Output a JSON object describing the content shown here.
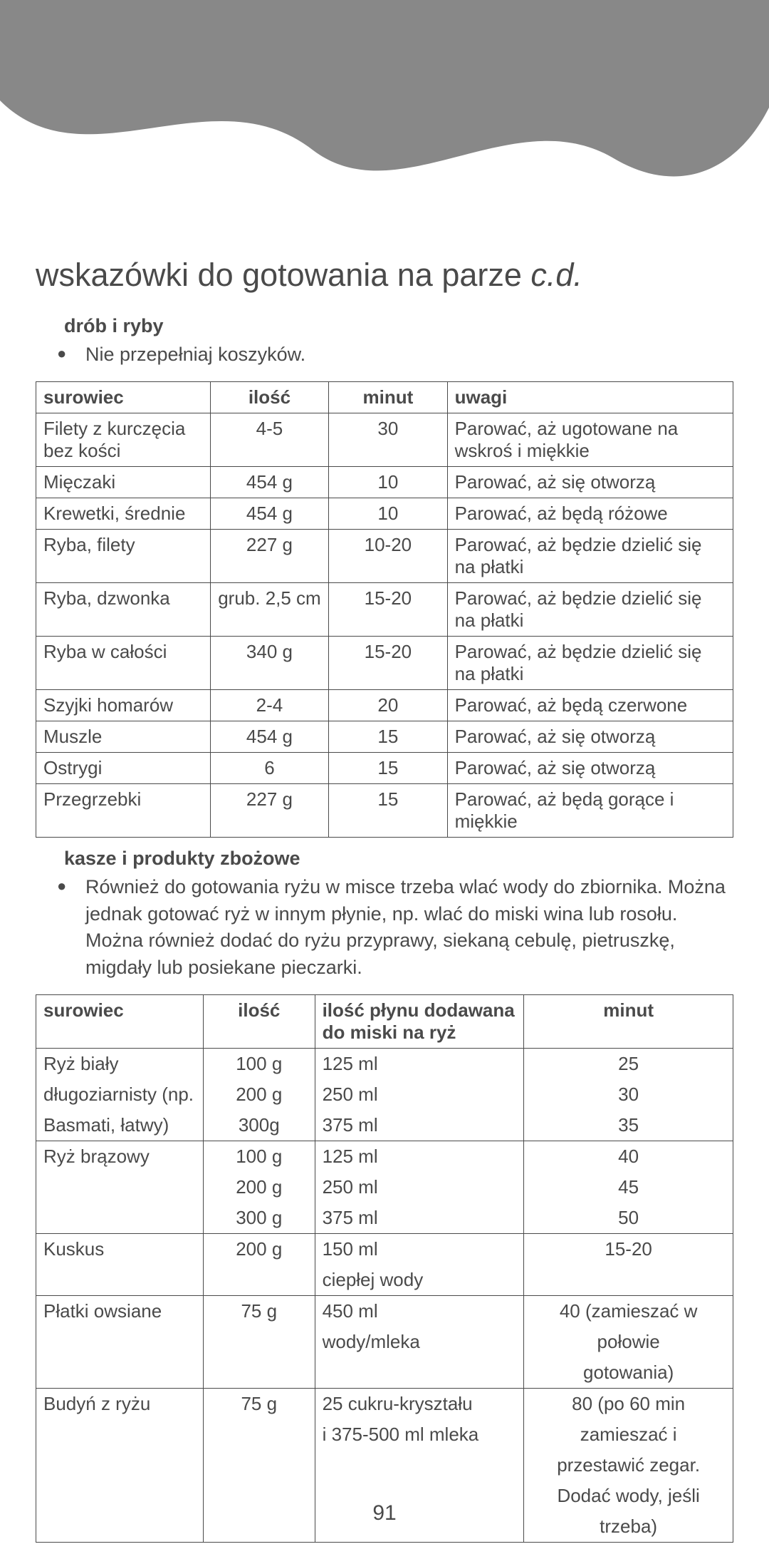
{
  "page_number": "91",
  "title_main": "wskazówki do gotowania na parze ",
  "title_italic": "c.d.",
  "section1_heading": "drób i ryby",
  "section1_bullet": "Nie przepełniaj koszyków.",
  "table1": {
    "headers": [
      "surowiec",
      "ilość",
      "minut",
      "uwagi"
    ],
    "rows": [
      [
        "Filety z kurczęcia bez kości",
        "4-5",
        "30",
        "Parować, aż ugotowane na wskroś i miękkie"
      ],
      [
        "Mięczaki",
        "454 g",
        "10",
        "Parować, aż się otworzą"
      ],
      [
        "Krewetki, średnie",
        "454 g",
        "10",
        "Parować, aż będą różowe"
      ],
      [
        "Ryba, filety",
        "227 g",
        "10-20",
        "Parować, aż będzie dzielić się na płatki"
      ],
      [
        "Ryba, dzwonka",
        "grub. 2,5 cm",
        "15-20",
        "Parować, aż będzie dzielić się na płatki"
      ],
      [
        "Ryba w całości",
        "340 g",
        "15-20",
        "Parować, aż będzie dzielić się na płatki"
      ],
      [
        "Szyjki homarów",
        "2-4",
        "20",
        "Parować, aż będą czerwone"
      ],
      [
        "Muszle",
        "454 g",
        "15",
        "Parować, aż się otworzą"
      ],
      [
        "Ostrygi",
        "6",
        "15",
        "Parować, aż się otworzą"
      ],
      [
        "Przegrzebki",
        "227 g",
        "15",
        "Parować, aż będą gorące i miękkie"
      ]
    ]
  },
  "section2_heading": "kasze i produkty zbożowe",
  "section2_bullet": "Również do gotowania ryżu w misce trzeba wlać wody do zbiornika. Można jednak gotować ryż w innym płynie, np. wlać do miski wina lub rosołu. Można również dodać do ryżu przyprawy, siekaną cebulę, pietruszkę, migdały lub posiekane pieczarki.",
  "table2": {
    "headers": [
      "surowiec",
      "ilość",
      "ilość płynu dodawana do miski na ryż",
      "minut"
    ],
    "groups": [
      {
        "lines": [
          [
            "Ryż biały",
            "100 g",
            "125 ml",
            "25"
          ],
          [
            "długoziarnisty (np.",
            "200 g",
            "250 ml",
            "30"
          ],
          [
            "Basmati, łatwy)",
            "300g",
            "375 ml",
            "35"
          ]
        ]
      },
      {
        "lines": [
          [
            "Ryż brązowy",
            "100 g",
            "125 ml",
            "40"
          ],
          [
            "",
            "200 g",
            "250 ml",
            "45"
          ],
          [
            "",
            "300 g",
            "375 ml",
            "50"
          ]
        ]
      },
      {
        "lines": [
          [
            "Kuskus",
            "200 g",
            "150 ml",
            "15-20"
          ],
          [
            "",
            "",
            "ciepłej wody",
            ""
          ]
        ]
      },
      {
        "lines": [
          [
            "Płatki owsiane",
            "75 g",
            "450 ml",
            "40 (zamieszać w"
          ],
          [
            "",
            "",
            "wody/mleka",
            "połowie"
          ],
          [
            "",
            "",
            "",
            "gotowania)"
          ]
        ]
      },
      {
        "lines": [
          [
            "Budyń z ryżu",
            "75 g",
            "25 cukru-kryształu",
            "80 (po 60 min"
          ],
          [
            "",
            "",
            "i 375-500 ml mleka",
            "zamieszać i"
          ],
          [
            "",
            "",
            "",
            "przestawić zegar."
          ],
          [
            "",
            "",
            "",
            "Dodać wody, jeśli"
          ],
          [
            "",
            "",
            "",
            "trzeba)"
          ]
        ]
      }
    ]
  },
  "col_widths_t1": [
    "25%",
    "17%",
    "17%",
    "41%"
  ],
  "col_widths_t2": [
    "24%",
    "16%",
    "30%",
    "30%"
  ]
}
